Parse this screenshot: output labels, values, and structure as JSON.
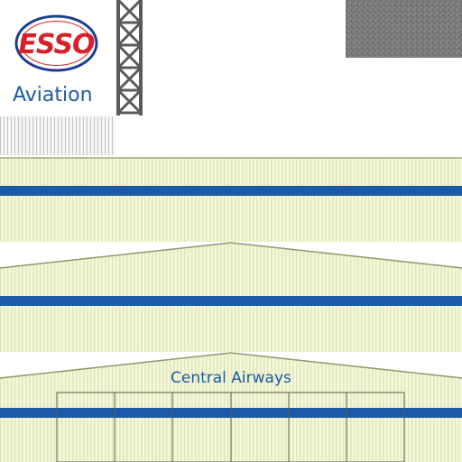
{
  "logo": {
    "wordmark": "ESSO",
    "subtitle": "Aviation",
    "colors": {
      "red": "#d8202a",
      "navy": "#1d3d8f",
      "blue_text": "#1d5aa8"
    }
  },
  "hangar": {
    "airline_name": "Central Airways",
    "colors": {
      "siding": "#f2f6d8",
      "stripe": "#1a5aa8",
      "roof_edge": "#8e9a6a"
    }
  },
  "icons": [
    "esso-logo",
    "lattice-tower",
    "gravel-patch",
    "vent-grille"
  ]
}
